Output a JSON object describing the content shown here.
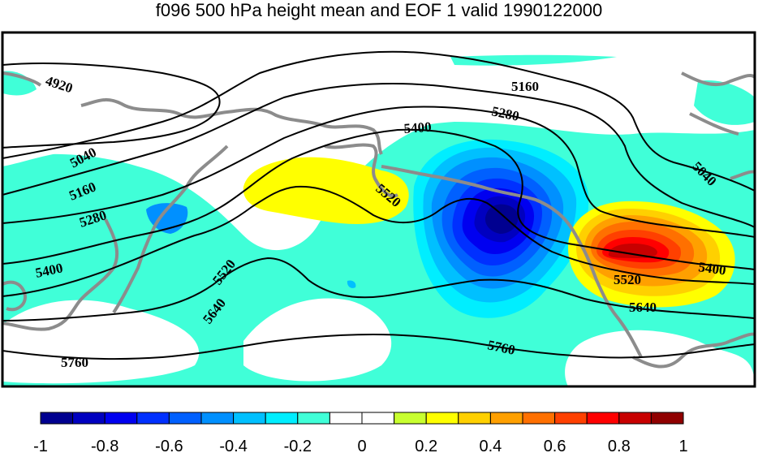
{
  "title": "f096 500 hPa height mean and EOF 1 valid 1990122000",
  "colorbar": {
    "colors": [
      "#000090",
      "#0000c0",
      "#0000f0",
      "#0030ff",
      "#0060ff",
      "#0090ff",
      "#00c0ff",
      "#00eeff",
      "#40ffd8",
      "#ffffff",
      "#ffffff",
      "#c8ff30",
      "#ffff00",
      "#ffd000",
      "#ffa000",
      "#ff7000",
      "#ff4000",
      "#ff0000",
      "#c80000",
      "#900000"
    ],
    "ticks": [
      "-1",
      "-0.8",
      "-0.6",
      "-0.4",
      "-0.2",
      "0",
      "0.2",
      "0.4",
      "0.6",
      "0.8",
      "1"
    ]
  },
  "contour_labels": [
    "4920",
    "5040",
    "5160",
    "5280",
    "5400",
    "5520",
    "5640",
    "5760",
    "5160",
    "5280",
    "5400",
    "5520",
    "5520",
    "5640",
    "5760",
    "5040",
    "5400"
  ],
  "colors": {
    "frame": "#000000",
    "coast": "#8c8c8c",
    "contour": "#000000"
  }
}
